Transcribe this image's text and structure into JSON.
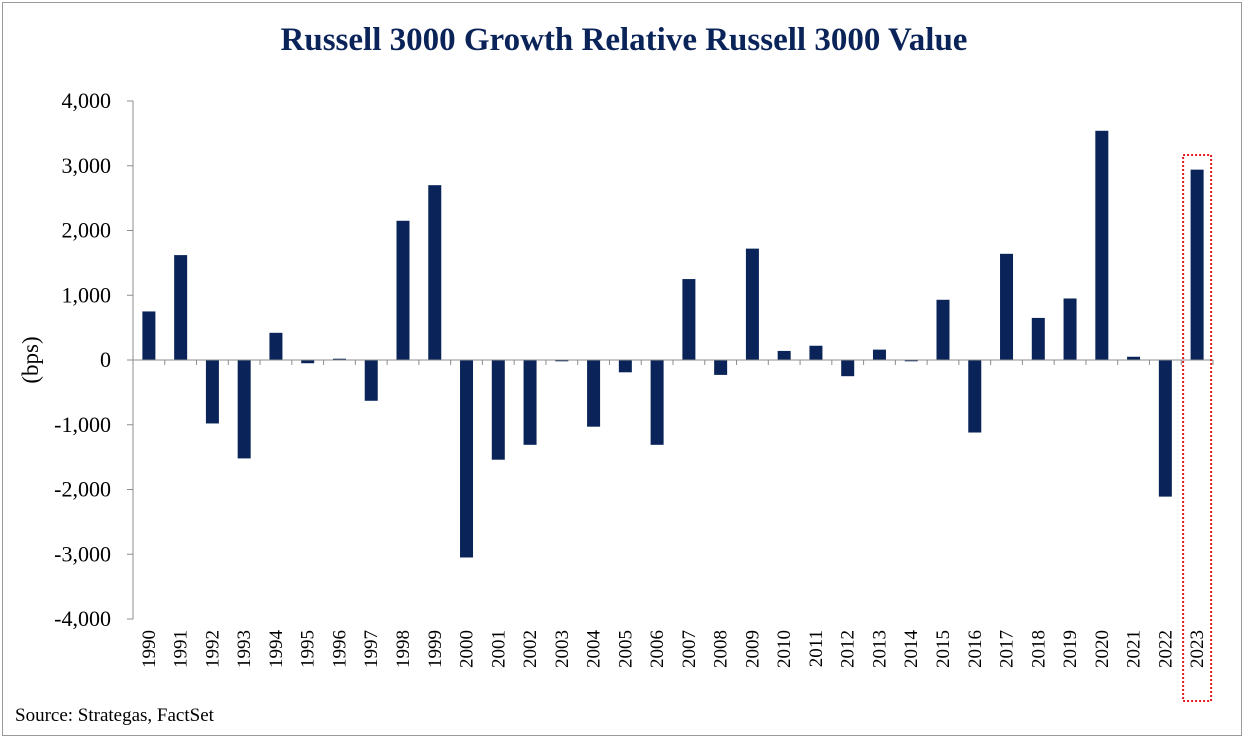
{
  "chart_data": {
    "type": "bar",
    "title": "Russell 3000 Growth Relative Russell 3000 Value",
    "ylabel": "(bps)",
    "xlabel": "",
    "ylim": [
      -4000,
      4000
    ],
    "yticks": [
      4000,
      3000,
      2000,
      1000,
      0,
      -1000,
      -2000,
      -3000,
      -4000
    ],
    "ytick_labels": [
      "4,000",
      "3,000",
      "2,000",
      "1,000",
      "0",
      "-1,000",
      "-2,000",
      "-3,000",
      "-4,000"
    ],
    "categories": [
      "1990",
      "1991",
      "1992",
      "1993",
      "1994",
      "1995",
      "1996",
      "1997",
      "1998",
      "1999",
      "2000",
      "2001",
      "2002",
      "2003",
      "2004",
      "2005",
      "2006",
      "2007",
      "2008",
      "2009",
      "2010",
      "2011",
      "2012",
      "2013",
      "2014",
      "2015",
      "2016",
      "2017",
      "2018",
      "2019",
      "2020",
      "2021",
      "2022",
      "2023"
    ],
    "values": [
      750,
      1620,
      -980,
      -1520,
      420,
      -50,
      20,
      -630,
      2150,
      2700,
      -3050,
      -1540,
      -1310,
      -20,
      -1030,
      -190,
      -1310,
      1250,
      -230,
      1720,
      140,
      220,
      -250,
      160,
      -20,
      930,
      -1120,
      1640,
      650,
      950,
      3540,
      50,
      -2110,
      2940
    ],
    "highlight": {
      "category": "2023",
      "style": "red dotted box"
    },
    "grid": false,
    "legend": "none",
    "bar_color": "#0a2459",
    "highlight_color": "#e0191f"
  },
  "source": "Source: Strategas, FactSet"
}
